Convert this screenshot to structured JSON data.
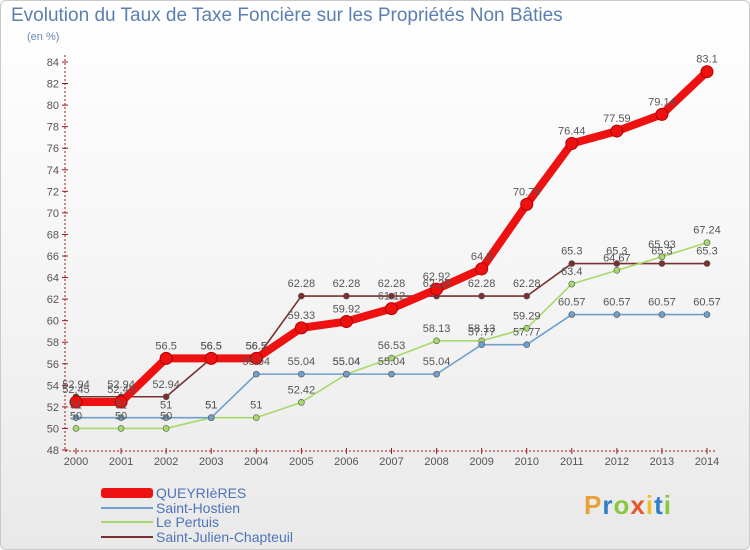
{
  "title": "Evolution du Taux de Taxe Foncière sur les Propriétés Non Bâties",
  "unit_label": "(en %)",
  "logo": {
    "letters": [
      "P",
      "r",
      "o",
      "x",
      "i",
      "t",
      "i"
    ],
    "colors": [
      "#e8a03a",
      "#2e7fc9",
      "#8cc63f",
      "#e8562a",
      "#f0c020",
      "#2e7fc9",
      "#8cc63f"
    ]
  },
  "chart_data": {
    "type": "line",
    "title": "Evolution du Taux de Taxe Foncière sur les Propriétés Non Bâties",
    "ylabel": "(en %)",
    "xlabel": "",
    "x": [
      "2000",
      "2001",
      "2002",
      "2003",
      "2004",
      "2005",
      "2006",
      "2007",
      "2008",
      "2009",
      "2010",
      "2011",
      "2012",
      "2013",
      "2014"
    ],
    "ylim": [
      48,
      84
    ],
    "yticks": [
      48,
      50,
      52,
      54,
      56,
      58,
      60,
      62,
      64,
      66,
      68,
      70,
      72,
      74,
      76,
      78,
      80,
      82,
      84
    ],
    "series": [
      {
        "name": "QUEYRIèRES",
        "color": "#ee1111",
        "values": [
          52.45,
          52.45,
          56.5,
          56.5,
          56.5,
          59.33,
          59.92,
          61.12,
          62.92,
          64.8,
          70.79,
          76.44,
          77.59,
          79.14,
          83.1
        ],
        "labels": [
          "52.45",
          "52.45",
          "56.5",
          "56.5",
          "56.5",
          "59.33",
          "59.92",
          "61.12",
          "62.92",
          "64.8",
          "70.79",
          "76.44",
          "77.59",
          "79.14",
          "83.1"
        ]
      },
      {
        "name": "Saint-Hostien",
        "color": "#6f9fcc",
        "values": [
          51,
          51,
          51,
          51,
          55.04,
          55.04,
          55.04,
          55.04,
          55.04,
          57.77,
          57.77,
          60.57,
          60.57,
          60.57,
          60.57
        ],
        "labels": [
          "51",
          "51",
          "51",
          "51",
          "55.04",
          "55.04",
          "55.04",
          "55.04",
          "55.04",
          "57.77",
          "57.77",
          "60.57",
          "60.57",
          "60.57",
          "60.57"
        ]
      },
      {
        "name": "Le Pertuis",
        "color": "#a6d96a",
        "values": [
          50,
          50,
          50,
          51,
          51,
          52.42,
          55.04,
          56.53,
          58.13,
          58.13,
          59.29,
          63.4,
          64.67,
          65.93,
          67.24
        ],
        "labels": [
          "50",
          "50",
          "50",
          "51",
          "51",
          "52.42",
          "55.04",
          "56.53",
          "58.13",
          "58.13",
          "59.29",
          "63.4",
          "64.67",
          "65.93",
          "67.24"
        ]
      },
      {
        "name": "Saint-Julien-Chapteuil",
        "color": "#7a3030",
        "values": [
          52.94,
          52.94,
          52.94,
          56.5,
          56.5,
          62.28,
          62.28,
          62.28,
          62.28,
          62.28,
          62.28,
          65.3,
          65.3,
          65.3,
          65.3
        ],
        "labels": [
          "52.94",
          "52.94",
          "52.94",
          "56.5",
          "56.5",
          "62.28",
          "62.28",
          "62.28",
          "62.28",
          "62.28",
          "62.28",
          "65.3",
          "65.3",
          "65.3",
          "65.3"
        ]
      }
    ],
    "legend_position": "bottom-left",
    "grid": false
  }
}
